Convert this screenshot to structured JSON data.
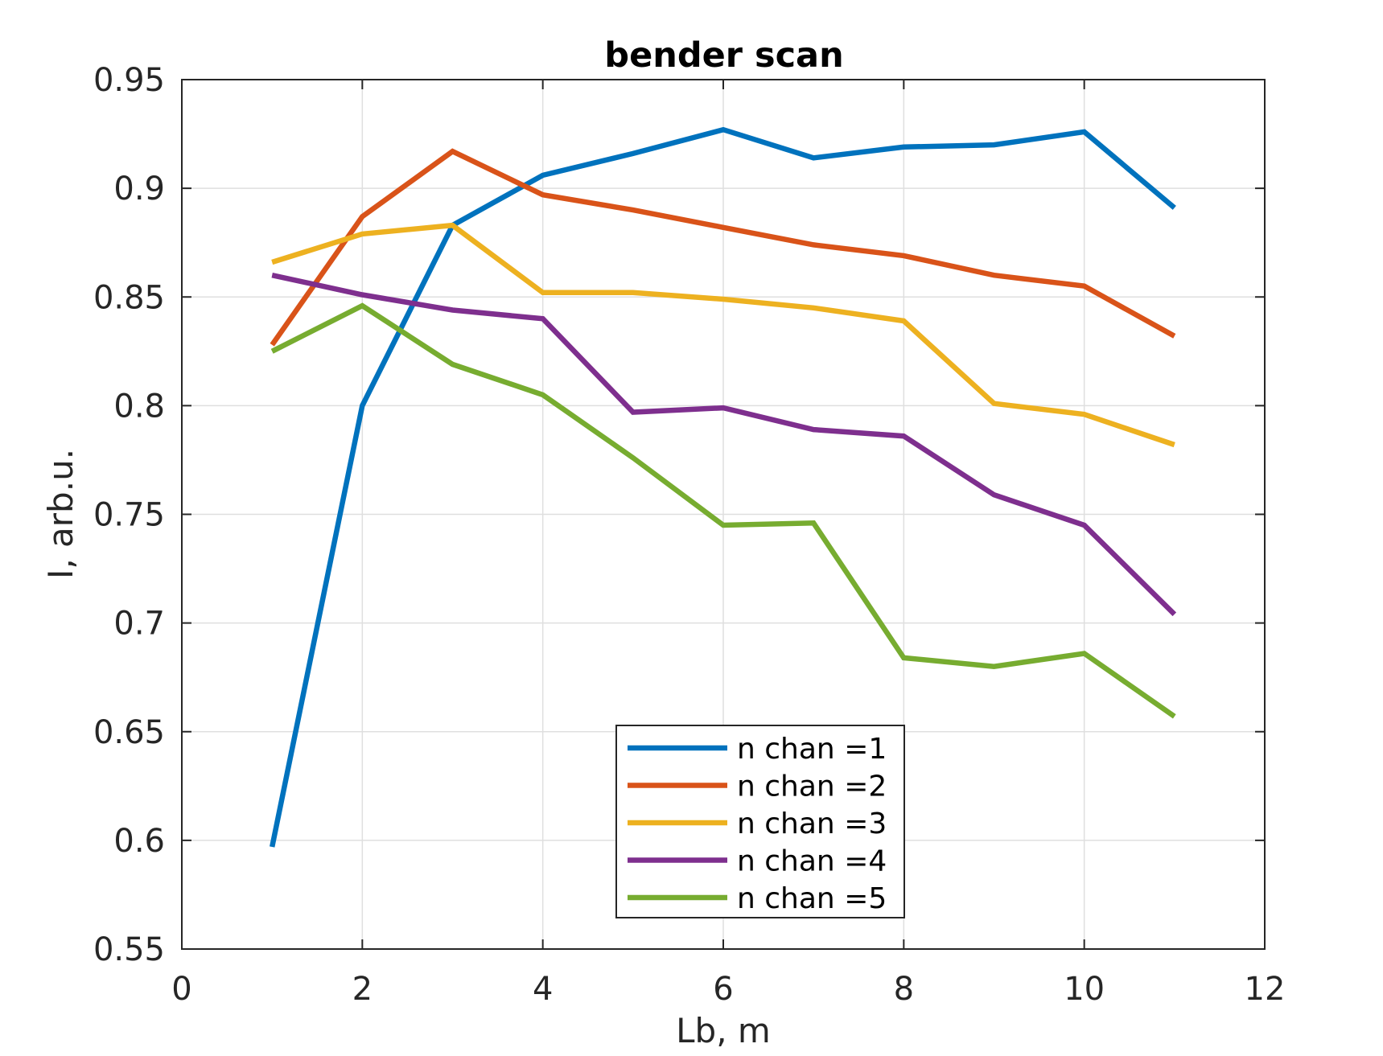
{
  "chart_data": {
    "type": "line",
    "title": "bender scan",
    "xlabel": "Lb, m",
    "ylabel": "I, arb.u.",
    "xlim": [
      0,
      12
    ],
    "ylim": [
      0.55,
      0.95
    ],
    "xticks": [
      "0",
      "2",
      "4",
      "6",
      "8",
      "10",
      "12"
    ],
    "yticks": [
      "0.55",
      "0.6",
      "0.65",
      "0.7",
      "0.75",
      "0.8",
      "0.85",
      "0.9",
      "0.95"
    ],
    "grid": true,
    "legend_position": "bottom-center",
    "x": [
      1,
      2,
      3,
      4,
      5,
      6,
      7,
      8,
      9,
      10,
      11
    ],
    "series": [
      {
        "name": "n chan =1",
        "color": "#0072BD",
        "values": [
          0.597,
          0.8,
          0.883,
          0.906,
          0.916,
          0.927,
          0.914,
          0.919,
          0.92,
          0.926,
          0.891
        ]
      },
      {
        "name": "n chan =2",
        "color": "#D95319",
        "values": [
          0.828,
          0.887,
          0.917,
          0.897,
          0.89,
          0.882,
          0.874,
          0.869,
          0.86,
          0.855,
          0.832
        ]
      },
      {
        "name": "n chan =3",
        "color": "#EDB120",
        "values": [
          0.866,
          0.879,
          0.883,
          0.852,
          0.852,
          0.849,
          0.845,
          0.839,
          0.801,
          0.796,
          0.782
        ]
      },
      {
        "name": "n chan =4",
        "color": "#7E2F8E",
        "values": [
          0.86,
          0.851,
          0.844,
          0.84,
          0.797,
          0.799,
          0.789,
          0.786,
          0.759,
          0.745,
          0.704
        ]
      },
      {
        "name": "n chan =5",
        "color": "#77AC30",
        "values": [
          0.825,
          0.846,
          0.819,
          0.805,
          0.776,
          0.745,
          0.746,
          0.684,
          0.68,
          0.686,
          0.657
        ]
      }
    ]
  }
}
